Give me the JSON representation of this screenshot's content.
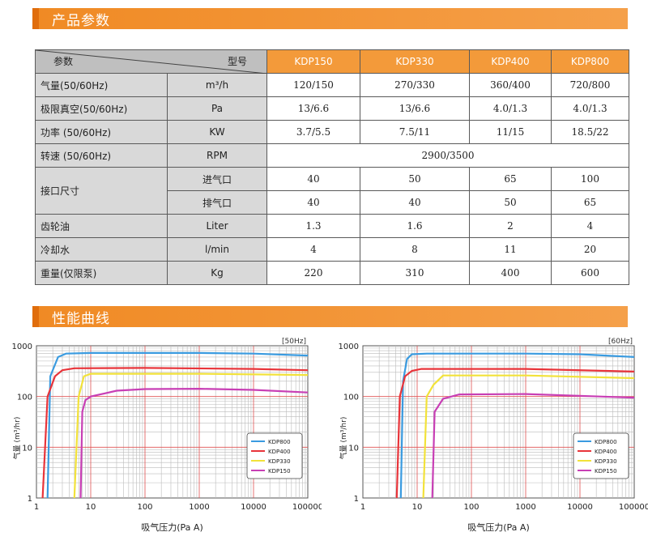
{
  "sections": {
    "params_title": "产品参数",
    "curves_title": "性能曲线"
  },
  "table": {
    "corner_left": "参数",
    "corner_right": "型号",
    "models": [
      "KDP150",
      "KDP330",
      "KDP400",
      "KDP800"
    ],
    "rows": [
      {
        "label": "气量(50/60Hz)",
        "unit": "m³/h",
        "values": [
          "120/150",
          "270/330",
          "360/400",
          "720/800"
        ]
      },
      {
        "label": "极限真空(50/60Hz)",
        "unit": "Pa",
        "values": [
          "13/6.6",
          "13/6.6",
          "4.0/1.3",
          "4.0/1.3"
        ]
      },
      {
        "label": "功率 (50/60Hz)",
        "unit": "KW",
        "values": [
          "3.7/5.5",
          "7.5/11",
          "11/15",
          "18.5/22"
        ]
      },
      {
        "label": "转速 (50/60Hz)",
        "unit": "RPM",
        "merged": "2900/3500"
      },
      {
        "label": "接口尺寸",
        "sub": [
          {
            "unit": "进气口",
            "values": [
              "40",
              "50",
              "65",
              "100"
            ]
          },
          {
            "unit": "排气口",
            "values": [
              "40",
              "40",
              "50",
              "65"
            ]
          }
        ]
      },
      {
        "label": "齿轮油",
        "unit": "Liter",
        "values": [
          "1.3",
          "1.6",
          "2",
          "4"
        ]
      },
      {
        "label": "冷却水",
        "unit": "l/min",
        "values": [
          "4",
          "8",
          "11",
          "20"
        ]
      },
      {
        "label": "重量(仅限泵)",
        "unit": "Kg",
        "values": [
          "220",
          "310",
          "400",
          "600"
        ]
      }
    ]
  },
  "chart_data": [
    {
      "type": "line",
      "freq_label": "[50Hz]",
      "xlabel": "吸气压力(Pa A)",
      "ylabel": "气量 (m³/hr)",
      "x_scale": "log",
      "y_scale": "log",
      "xlim": [
        1,
        100000
      ],
      "ylim": [
        1,
        1000
      ],
      "x_ticks": [
        "1",
        "10",
        "100",
        "1000",
        "10000",
        "100000"
      ],
      "y_ticks": [
        "1",
        "10",
        "100",
        "1000"
      ],
      "legend_position": "right",
      "series": [
        {
          "name": "KDP800",
          "color": "#3a9be0",
          "points": [
            [
              1.6,
              1
            ],
            [
              1.8,
              250
            ],
            [
              2.5,
              600
            ],
            [
              3.5,
              700
            ],
            [
              10,
              720
            ],
            [
              1000,
              720
            ],
            [
              10000,
              700
            ],
            [
              100000,
              640
            ]
          ]
        },
        {
          "name": "KDP400",
          "color": "#e8343a",
          "points": [
            [
              1.3,
              1
            ],
            [
              1.6,
              100
            ],
            [
              2.2,
              250
            ],
            [
              3,
              330
            ],
            [
              5,
              360
            ],
            [
              100,
              365
            ],
            [
              10000,
              350
            ],
            [
              100000,
              330
            ]
          ]
        },
        {
          "name": "KDP330",
          "color": "#f2e23a",
          "points": [
            [
              5,
              1
            ],
            [
              6,
              100
            ],
            [
              7.5,
              250
            ],
            [
              10,
              280
            ],
            [
              1000,
              280
            ],
            [
              100000,
              265
            ]
          ]
        },
        {
          "name": "KDP150",
          "color": "#c83fb5",
          "points": [
            [
              6.5,
              1
            ],
            [
              7,
              50
            ],
            [
              8,
              85
            ],
            [
              10,
              100
            ],
            [
              30,
              130
            ],
            [
              100,
              140
            ],
            [
              1000,
              142
            ],
            [
              10000,
              135
            ],
            [
              100000,
              120
            ]
          ]
        }
      ]
    },
    {
      "type": "line",
      "freq_label": "[60Hz]",
      "xlabel": "吸气压力(Pa A)",
      "ylabel": "气量 (m³/hr)",
      "x_scale": "log",
      "y_scale": "log",
      "xlim": [
        1,
        100000
      ],
      "ylim": [
        1,
        1000
      ],
      "x_ticks": [
        "1",
        "10",
        "100",
        "1000",
        "10000",
        "100000"
      ],
      "y_ticks": [
        "1",
        "10",
        "100",
        "1000"
      ],
      "legend_position": "right",
      "series": [
        {
          "name": "KDP800",
          "color": "#3a9be0",
          "points": [
            [
              5,
              1
            ],
            [
              5.5,
              200
            ],
            [
              6.5,
              550
            ],
            [
              8,
              680
            ],
            [
              15,
              700
            ],
            [
              1000,
              700
            ],
            [
              10000,
              680
            ],
            [
              100000,
              600
            ]
          ]
        },
        {
          "name": "KDP400",
          "color": "#e8343a",
          "points": [
            [
              4.2,
              1
            ],
            [
              4.8,
              100
            ],
            [
              6,
              250
            ],
            [
              8,
              320
            ],
            [
              12,
              350
            ],
            [
              1000,
              350
            ],
            [
              100000,
              310
            ]
          ]
        },
        {
          "name": "KDP330",
          "color": "#f2e23a",
          "points": [
            [
              13,
              1
            ],
            [
              15,
              100
            ],
            [
              20,
              170
            ],
            [
              30,
              260
            ],
            [
              1000,
              260
            ],
            [
              100000,
              230
            ]
          ]
        },
        {
          "name": "KDP150",
          "color": "#c83fb5",
          "points": [
            [
              19,
              1
            ],
            [
              21,
              50
            ],
            [
              30,
              90
            ],
            [
              60,
              110
            ],
            [
              1000,
              112
            ],
            [
              100000,
              95
            ]
          ]
        }
      ]
    }
  ]
}
